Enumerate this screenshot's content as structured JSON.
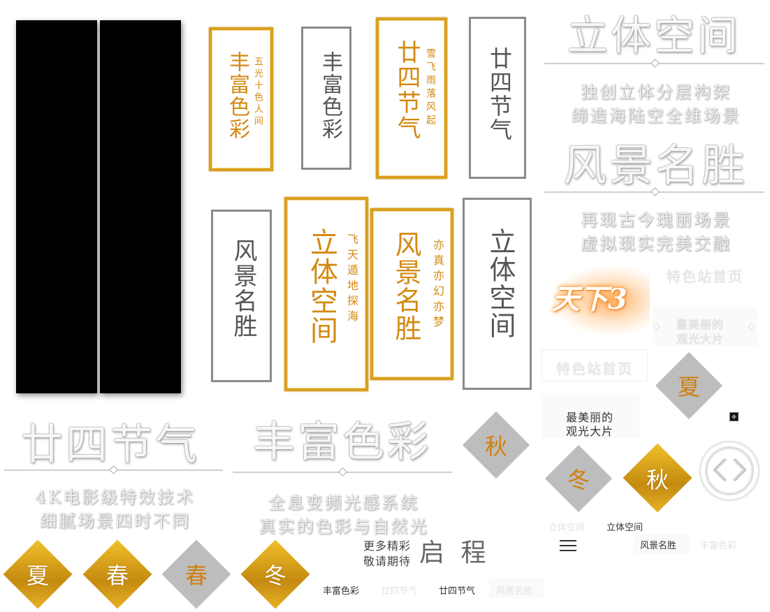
{
  "colors": {
    "gold": "#d38a12",
    "gold_border": "#d9a020",
    "gray_border": "#8a8a8a",
    "gray_diamond": "#bdbdbd"
  },
  "cards": {
    "c1_main": "丰富色彩",
    "c1_sub": "五光十色人间",
    "c2_main": "丰富色彩",
    "c3_main": "廿四节气",
    "c3_sub": "雪飞雨落风起",
    "c4_main": "廿四节气",
    "c5_main": "风景名胜",
    "c6_main": "立体空间",
    "c6_sub": "飞天遁地探海",
    "c7_main": "风景名胜",
    "c7_sub": "亦真亦幻亦梦",
    "c8_main": "立体空间"
  },
  "features": {
    "f1_title": "立体空间",
    "f1_line1": "独创立体分层构架",
    "f1_line2": "缔造海陆空全维场景",
    "f2_title": "风景名胜",
    "f2_line1": "再现古今瑰丽场景",
    "f2_line2": "虚拟现实完美交融",
    "f3_title": "廿四节气",
    "f3_line1": "4K电影级特效技术",
    "f3_line2": "细腻场景四时不同",
    "f4_title": "丰富色彩",
    "f4_line1": "全息变频光感系统",
    "f4_line2": "真实的色彩与自然光"
  },
  "logo": {
    "text": "天下3"
  },
  "right_panel": {
    "site_home_1": "特色站首页",
    "site_home_2": "特色站首页",
    "video_1_line1": "最美丽的",
    "video_1_line2": "观光大片",
    "video_2_line1": "最美丽的",
    "video_2_line2": "观光大片"
  },
  "seasons": {
    "d1": "秋",
    "d2": "夏",
    "d3": "冬",
    "d4": "秋",
    "b1": "夏",
    "b2": "春",
    "b3": "春",
    "b4": "冬"
  },
  "coming": {
    "line1": "更多精彩",
    "line2": "敬请期待",
    "big": "启 程"
  },
  "nav": {
    "bottom": [
      "丰富色彩",
      "廿四节气",
      "廿四节气",
      "风景名胜"
    ],
    "right1": [
      "立体空间",
      "立体空间"
    ],
    "right2": [
      "风景名胜",
      "丰富色彩"
    ]
  }
}
